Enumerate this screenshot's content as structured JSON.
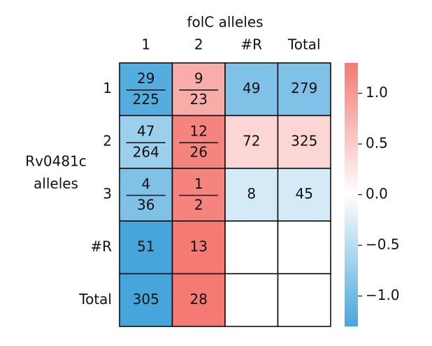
{
  "chart_data": {
    "type": "heatmap",
    "title": "folC alleles",
    "ylabel": [
      "Rv0481c",
      "alleles"
    ],
    "columns": [
      "1",
      "2",
      "#R",
      "Total"
    ],
    "rows": [
      "1",
      "2",
      "3",
      "#R",
      "Total"
    ],
    "cells": [
      [
        {
          "value": -1.2,
          "num": 29,
          "den": 225
        },
        {
          "value": 0.8,
          "num": 9,
          "den": 23
        },
        {
          "value": -0.9,
          "text": 49
        },
        {
          "value": -0.9,
          "text": 279
        }
      ],
      [
        {
          "value": -0.7,
          "num": 47,
          "den": 264
        },
        {
          "value": 1.2,
          "num": 12,
          "den": 26
        },
        {
          "value": 0.4,
          "text": 72
        },
        {
          "value": 0.4,
          "text": 325
        }
      ],
      [
        {
          "value": -0.9,
          "num": 4,
          "den": 36
        },
        {
          "value": 1.2,
          "num": 1,
          "den": 2
        },
        {
          "value": -0.3,
          "text": 8
        },
        {
          "value": -0.3,
          "text": 45
        }
      ],
      [
        {
          "value": -1.3,
          "text": 51
        },
        {
          "value": 1.3,
          "text": 13
        },
        {
          "value": null
        },
        {
          "value": null
        }
      ],
      [
        {
          "value": -1.3,
          "text": 305
        },
        {
          "value": 1.3,
          "text": 28
        },
        {
          "value": null
        },
        {
          "value": null
        }
      ]
    ],
    "colormap": [
      "#46a6dc",
      "#ffffff",
      "#f47a73"
    ],
    "clim": [
      -1.3,
      1.3
    ],
    "cticks": [
      {
        "value": -1.0,
        "label": "−1.0"
      },
      {
        "value": -0.5,
        "label": "−0.5"
      },
      {
        "value": 0,
        "label": "0.0"
      },
      0.5,
      {
        "value": 1.0,
        "label": "1.0"
      }
    ]
  }
}
